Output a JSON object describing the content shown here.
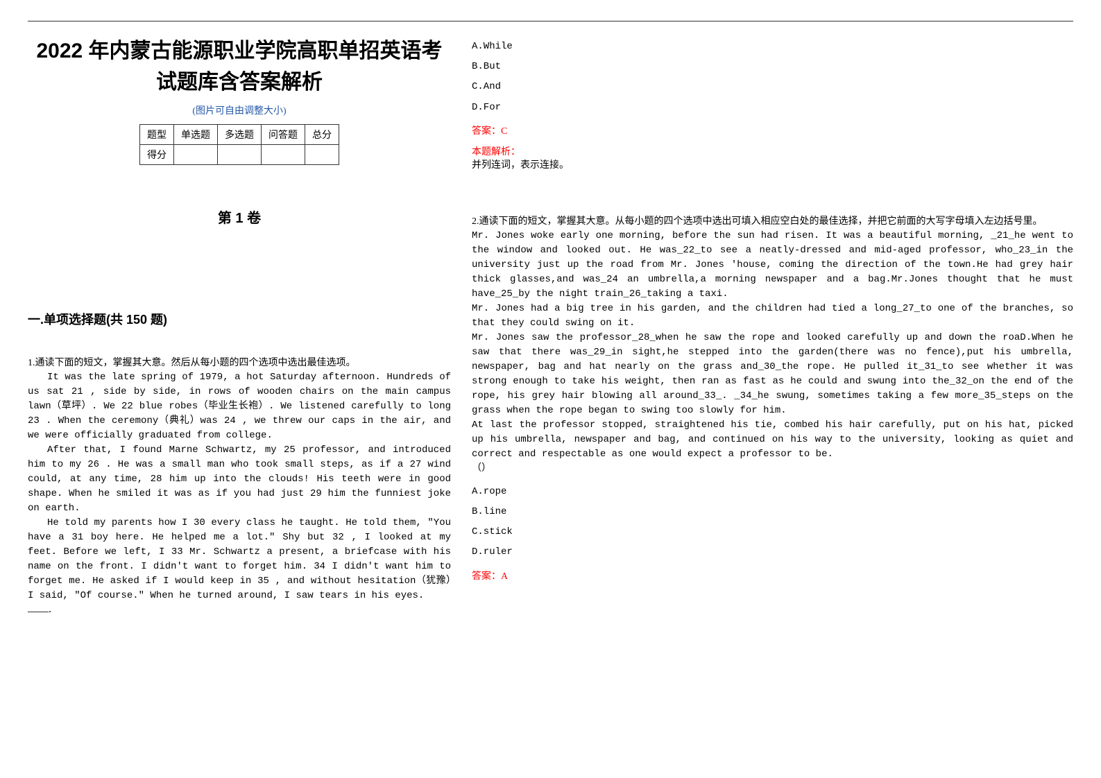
{
  "header": {
    "title": "2022 年内蒙古能源职业学院高职单招英语考试题库含答案解析",
    "adjust_note": "(图片可自由调整大小)"
  },
  "score_table": {
    "headers": [
      "题型",
      "单选题",
      "多选题",
      "问答题",
      "总分"
    ],
    "row_label": "得分"
  },
  "volume": "第 1 卷",
  "section": "一.单项选择题(共 150 题)",
  "q1": {
    "stem": "1.通读下面的短文，掌握其大意。然后从每小题的四个选项中选出最佳选项。",
    "p1": "It was the late spring of 1979, a hot Saturday afternoon. Hundreds of us sat  21  , side by side, in rows of wooden chairs on the main campus lawn（草坪）. We  22  blue robes（毕业生长袍）. We listened carefully to long  23  . When the ceremony（典礼）was  24  , we threw our caps in the air, and we were officially graduated from college.",
    "p2": "After that, I found Marne Schwartz, my  25  professor, and introduced him to my  26  . He was a small man who took small steps, as if a  27  wind could, at any time,   28  him up into the clouds! His teeth were in good shape. When he smiled it was as if you had just  29  him the funniest joke on earth.",
    "p3": "He told my parents how I   30  every class he taught. He told them, \"You have a  31  boy here. He helped me a lot.\" Shy but  32  , I looked at my feet. Before we left, I  33  Mr. Schwartz a present, a briefcase with his name on the front. I didn't want to forget him.   34  I didn't want him to forget me. He asked if I would keep in  35  , and without hesitation（犹豫）I said, \"Of course.\" When he turned around, I saw tears in his eyes.",
    "optA": "A.While",
    "optB": "B.But",
    "optC": "C.And",
    "optD": "D.For",
    "answer": "答案：C",
    "analysis_label": "本题解析：",
    "analysis_text": "并列连词，表示连接。"
  },
  "q2": {
    "stem": "2.通读下面的短文，掌握其大意。从每小题的四个选项中选出可填入相应空白处的最佳选择，并把它前面的大写字母填入左边括号里。",
    "p1": "Mr. Jones woke early one morning, before the sun had risen. It was a beautiful morning, _21_he went to the window and looked out. He was_22_to see a neatly-dressed and mid-aged professor, who_23_in the university just up the road from Mr. Jones 'house, coming the direction of the town.He had grey hair thick glasses,and was_24 an umbrella,a morning newspaper and a bag.Mr.Jones thought that he must have_25_by the night train_26_taking a taxi.",
    "p2": "Mr. Jones had a big tree in his garden, and the children had tied a long_27_to one of the branches, so that they could swing on it.",
    "p3": "Mr. Jones saw the professor_28_when he saw the rope and looked carefully up and down the roaD.When he saw that there was_29_in sight,he stepped into the garden(there was no fence),put his umbrella, newspaper, bag and hat nearly on the grass and_30_the rope. He pulled it_31_to see whether it was strong enough to take his weight, then ran as fast as he could and swung into the_32_on the end of the rope, his grey hair blowing all around_33_. _34_he swung, sometimes taking a few more_35_steps on the grass when the rope began to swing too slowly for him.",
    "p4": "At last the professor stopped, straightened his tie, combed his hair carefully, put on his hat, picked up his umbrella, newspaper and bag, and continued on his way to the university, looking as quiet and correct and respectable as one would expect a professor to be.",
    "paren": "（）",
    "optA": "A.rope",
    "optB": "B.line",
    "optC": "C.stick",
    "optD": "D.ruler",
    "answer": "答案：A"
  },
  "colors": {
    "text": "#000000",
    "answer": "#ff0000",
    "subtitle": "#2458a6",
    "rule": "#333333"
  }
}
